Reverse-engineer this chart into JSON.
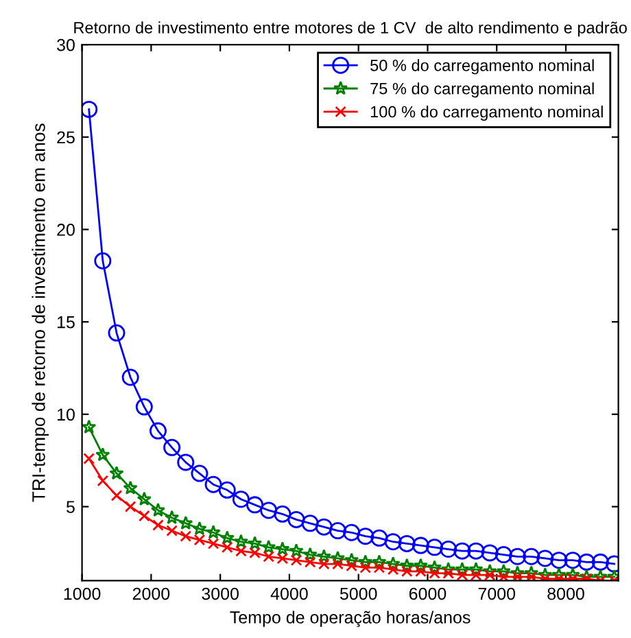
{
  "chart_data": {
    "type": "line",
    "title": "Retorno de investimento entre motores de 1 CV  de alto rendimento e padrão",
    "xlabel": "Tempo de operação horas/anos",
    "ylabel": "TRI-tempo de retorno de investimento em anos",
    "x": [
      1100,
      1300,
      1500,
      1700,
      1900,
      2100,
      2300,
      2500,
      2700,
      2900,
      3100,
      3300,
      3500,
      3700,
      3900,
      4100,
      4300,
      4500,
      4700,
      4900,
      5100,
      5300,
      5500,
      5700,
      5900,
      6100,
      6300,
      6500,
      6700,
      6900,
      7100,
      7300,
      7500,
      7700,
      7900,
      8100,
      8300,
      8500,
      8700
    ],
    "series": [
      {
        "name": "50 % do carregamento nominal",
        "color": "#0000ff",
        "marker": "circle",
        "values": [
          26.5,
          18.3,
          14.4,
          12.0,
          10.4,
          9.1,
          8.2,
          7.4,
          6.8,
          6.2,
          5.9,
          5.4,
          5.1,
          4.8,
          4.6,
          4.3,
          4.1,
          3.9,
          3.7,
          3.6,
          3.4,
          3.3,
          3.1,
          3.0,
          2.9,
          2.8,
          2.7,
          2.6,
          2.6,
          2.5,
          2.4,
          2.3,
          2.3,
          2.2,
          2.1,
          2.1,
          2.0,
          2.0,
          1.9
        ]
      },
      {
        "name": "75 % do carregamento nominal",
        "color": "#008000",
        "marker": "star",
        "values": [
          9.3,
          7.8,
          6.8,
          6.0,
          5.4,
          4.8,
          4.4,
          4.1,
          3.8,
          3.6,
          3.3,
          3.1,
          3.0,
          2.8,
          2.7,
          2.6,
          2.4,
          2.3,
          2.2,
          2.1,
          2.0,
          2.0,
          1.9,
          1.8,
          1.8,
          1.7,
          1.6,
          1.6,
          1.6,
          1.5,
          1.5,
          1.4,
          1.4,
          1.3,
          1.3,
          1.3,
          1.2,
          1.2,
          1.2
        ]
      },
      {
        "name": "100 % do carregamento nominal",
        "color": "#ff0000",
        "marker": "cross",
        "values": [
          7.6,
          6.4,
          5.6,
          5.0,
          4.5,
          4.0,
          3.7,
          3.4,
          3.2,
          3.0,
          2.8,
          2.6,
          2.5,
          2.3,
          2.2,
          2.1,
          2.0,
          1.9,
          1.9,
          1.8,
          1.7,
          1.7,
          1.6,
          1.5,
          1.5,
          1.4,
          1.4,
          1.3,
          1.3,
          1.3,
          1.2,
          1.2,
          1.2,
          1.1,
          1.1,
          1.1,
          1.1,
          1.0,
          1.0
        ]
      }
    ],
    "xlim": [
      1000,
      8760
    ],
    "xticks": [
      1000,
      2000,
      3000,
      4000,
      5000,
      6000,
      7000,
      8000
    ],
    "ylim": [
      1,
      30
    ],
    "yticks": [
      5,
      10,
      15,
      20,
      25,
      30
    ],
    "grid": false,
    "legend": "top right",
    "line_style": "solid"
  }
}
